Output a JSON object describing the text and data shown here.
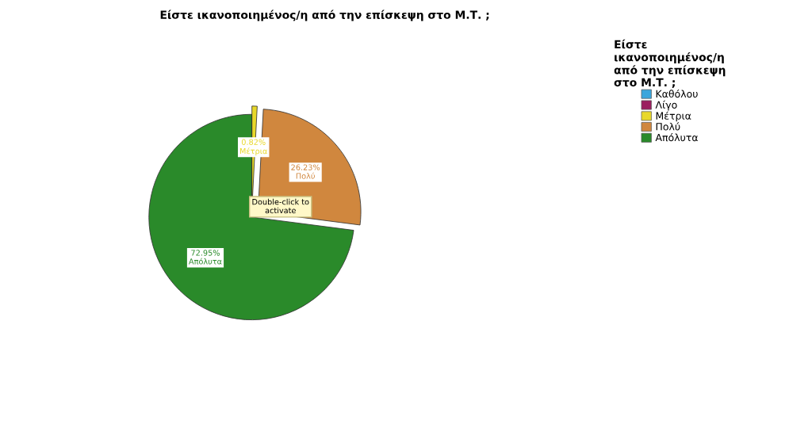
{
  "chart_data": {
    "type": "pie",
    "title": "Είστε ικανοποιημένος/η από την επίσκεψη στο Μ.Τ. ;",
    "legend_title": "Είστε\nικανοποιημένος/η\nαπό την επίσκεψη\nστο Μ.Τ. ;",
    "categories": [
      "Καθόλου",
      "Λίγο",
      "Μέτρια",
      "Πολύ",
      "Απόλυτα"
    ],
    "values": [
      0,
      0,
      0.82,
      26.23,
      72.95
    ],
    "colors": [
      "#3aa6dc",
      "#9b1f5f",
      "#e8d82a",
      "#d0873e",
      "#2a8a2a"
    ],
    "value_labels": [
      null,
      null,
      "0.82%\nΜέτρια",
      "26.23%\nΠολύ",
      "72.95%\nΑπόλυτα"
    ],
    "annotations": [
      "Double-click to\nactivate"
    ],
    "legend": "top right"
  }
}
